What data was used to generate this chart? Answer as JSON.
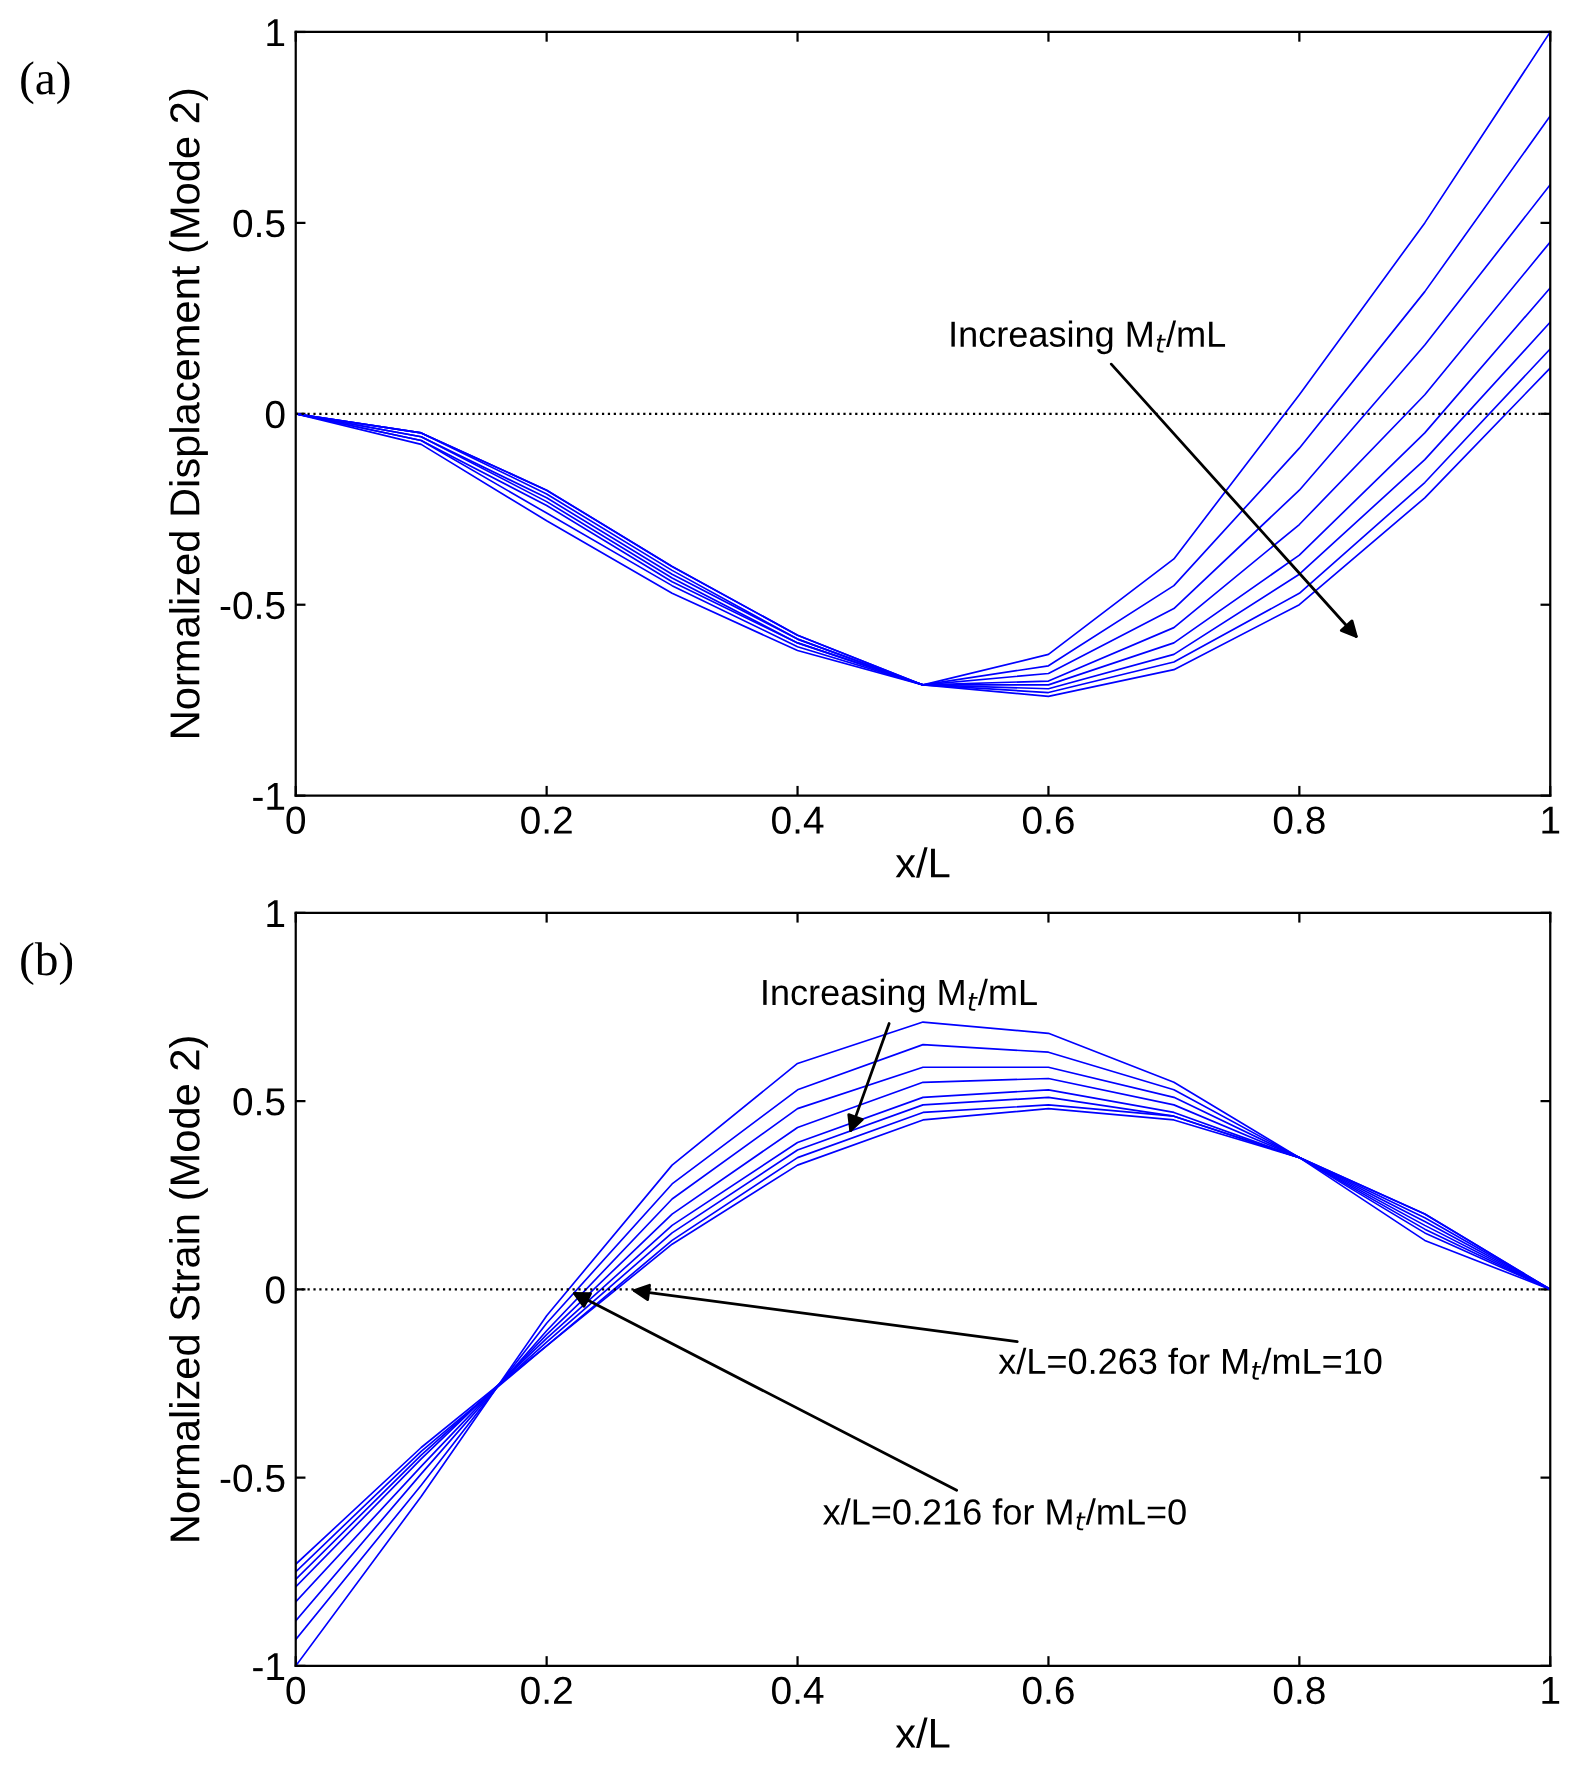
{
  "chart_data": [
    {
      "type": "line",
      "xlabel": "x/L",
      "ylabel": "Normalized Displacement (Mode 2)",
      "x": [
        0,
        0.1,
        0.2,
        0.3,
        0.4,
        0.5,
        0.6,
        0.7,
        0.8,
        0.9,
        1
      ],
      "series": [
        {
          "color": "#0000ff",
          "values": [
            0,
            -0.08,
            -0.28,
            -0.47,
            -0.62,
            -0.71,
            -0.63,
            -0.38,
            0.05,
            0.5,
            1.0
          ]
        },
        {
          "color": "#0000ff",
          "values": [
            0,
            -0.07,
            -0.26,
            -0.45,
            -0.61,
            -0.71,
            -0.66,
            -0.45,
            -0.09,
            0.32,
            0.78
          ]
        },
        {
          "color": "#0000ff",
          "values": [
            0,
            -0.07,
            -0.24,
            -0.44,
            -0.6,
            -0.71,
            -0.68,
            -0.51,
            -0.2,
            0.18,
            0.6
          ]
        },
        {
          "color": "#0000ff",
          "values": [
            0,
            -0.06,
            -0.23,
            -0.43,
            -0.6,
            -0.71,
            -0.7,
            -0.56,
            -0.29,
            0.05,
            0.45
          ]
        },
        {
          "color": "#0000ff",
          "values": [
            0,
            -0.06,
            -0.22,
            -0.42,
            -0.59,
            -0.71,
            -0.71,
            -0.6,
            -0.37,
            -0.05,
            0.33
          ]
        },
        {
          "color": "#0000ff",
          "values": [
            0,
            -0.05,
            -0.21,
            -0.41,
            -0.59,
            -0.71,
            -0.72,
            -0.63,
            -0.42,
            -0.12,
            0.24
          ]
        },
        {
          "color": "#0000ff",
          "values": [
            0,
            -0.05,
            -0.2,
            -0.4,
            -0.58,
            -0.71,
            -0.73,
            -0.65,
            -0.47,
            -0.18,
            0.17
          ]
        },
        {
          "color": "#0000ff",
          "values": [
            0,
            -0.05,
            -0.2,
            -0.4,
            -0.58,
            -0.71,
            -0.74,
            -0.67,
            -0.5,
            -0.22,
            0.12
          ]
        }
      ],
      "xlim": [
        0,
        1
      ],
      "ylim": [
        -1,
        1
      ],
      "xticks": [
        0,
        0.2,
        0.4,
        0.6,
        0.8,
        1
      ],
      "yticks": [
        -1,
        -0.5,
        0,
        0.5,
        1
      ],
      "grid": false,
      "legend": false,
      "ref_lines": [
        {
          "axis": "y",
          "value": 0,
          "color": "#000000",
          "line_style": "dotted"
        }
      ],
      "annotations": [
        "(a)",
        "Increasing M$_{t}$/mL"
      ]
    },
    {
      "type": "line",
      "xlabel": "x/L",
      "ylabel": "Normalized Strain (Mode 2)",
      "x": [
        0,
        0.1,
        0.2,
        0.3,
        0.4,
        0.5,
        0.6,
        0.7,
        0.8,
        0.9,
        1
      ],
      "series": [
        {
          "color": "#0000ff",
          "values": [
            -1,
            -0.55,
            -0.07,
            0.33,
            0.6,
            0.71,
            0.68,
            0.55,
            0.35,
            0.13,
            0
          ]
        },
        {
          "color": "#0000ff",
          "values": [
            -0.93,
            -0.52,
            -0.09,
            0.28,
            0.53,
            0.65,
            0.63,
            0.53,
            0.35,
            0.15,
            0
          ]
        },
        {
          "color": "#0000ff",
          "values": [
            -0.88,
            -0.49,
            -0.11,
            0.24,
            0.48,
            0.59,
            0.59,
            0.51,
            0.35,
            0.16,
            0
          ]
        },
        {
          "color": "#0000ff",
          "values": [
            -0.83,
            -0.47,
            -0.12,
            0.2,
            0.43,
            0.55,
            0.56,
            0.49,
            0.35,
            0.17,
            0
          ]
        },
        {
          "color": "#0000ff",
          "values": [
            -0.79,
            -0.45,
            -0.13,
            0.17,
            0.39,
            0.51,
            0.53,
            0.47,
            0.35,
            0.18,
            0
          ]
        },
        {
          "color": "#0000ff",
          "values": [
            -0.77,
            -0.44,
            -0.14,
            0.15,
            0.37,
            0.49,
            0.51,
            0.46,
            0.35,
            0.19,
            0
          ]
        },
        {
          "color": "#0000ff",
          "values": [
            -0.75,
            -0.43,
            -0.15,
            0.13,
            0.35,
            0.47,
            0.49,
            0.46,
            0.35,
            0.2,
            0
          ]
        },
        {
          "color": "#0000ff",
          "values": [
            -0.73,
            -0.42,
            -0.15,
            0.12,
            0.33,
            0.45,
            0.48,
            0.45,
            0.35,
            0.2,
            0
          ]
        }
      ],
      "xlim": [
        0,
        1
      ],
      "ylim": [
        -1,
        1
      ],
      "xticks": [
        0,
        0.2,
        0.4,
        0.6,
        0.8,
        1
      ],
      "yticks": [
        -1,
        -0.5,
        0,
        0.5,
        1
      ],
      "grid": false,
      "legend": false,
      "ref_lines": [
        {
          "axis": "y",
          "value": 0,
          "color": "#000000",
          "line_style": "dotted"
        }
      ],
      "annotations": [
        "(b)",
        {
          "text": "Increasing M$_{t}$/mL",
          "x": 0.44,
          "y": 0.4
        },
        {
          "text": "x/L=0.263 for M$_{t}$/mL=10",
          "x": 0.263,
          "y": 0
        },
        {
          "text": "x/L=0.216 for M$_{t}$/mL=0",
          "x": 0.216,
          "y": 0
        }
      ]
    }
  ]
}
